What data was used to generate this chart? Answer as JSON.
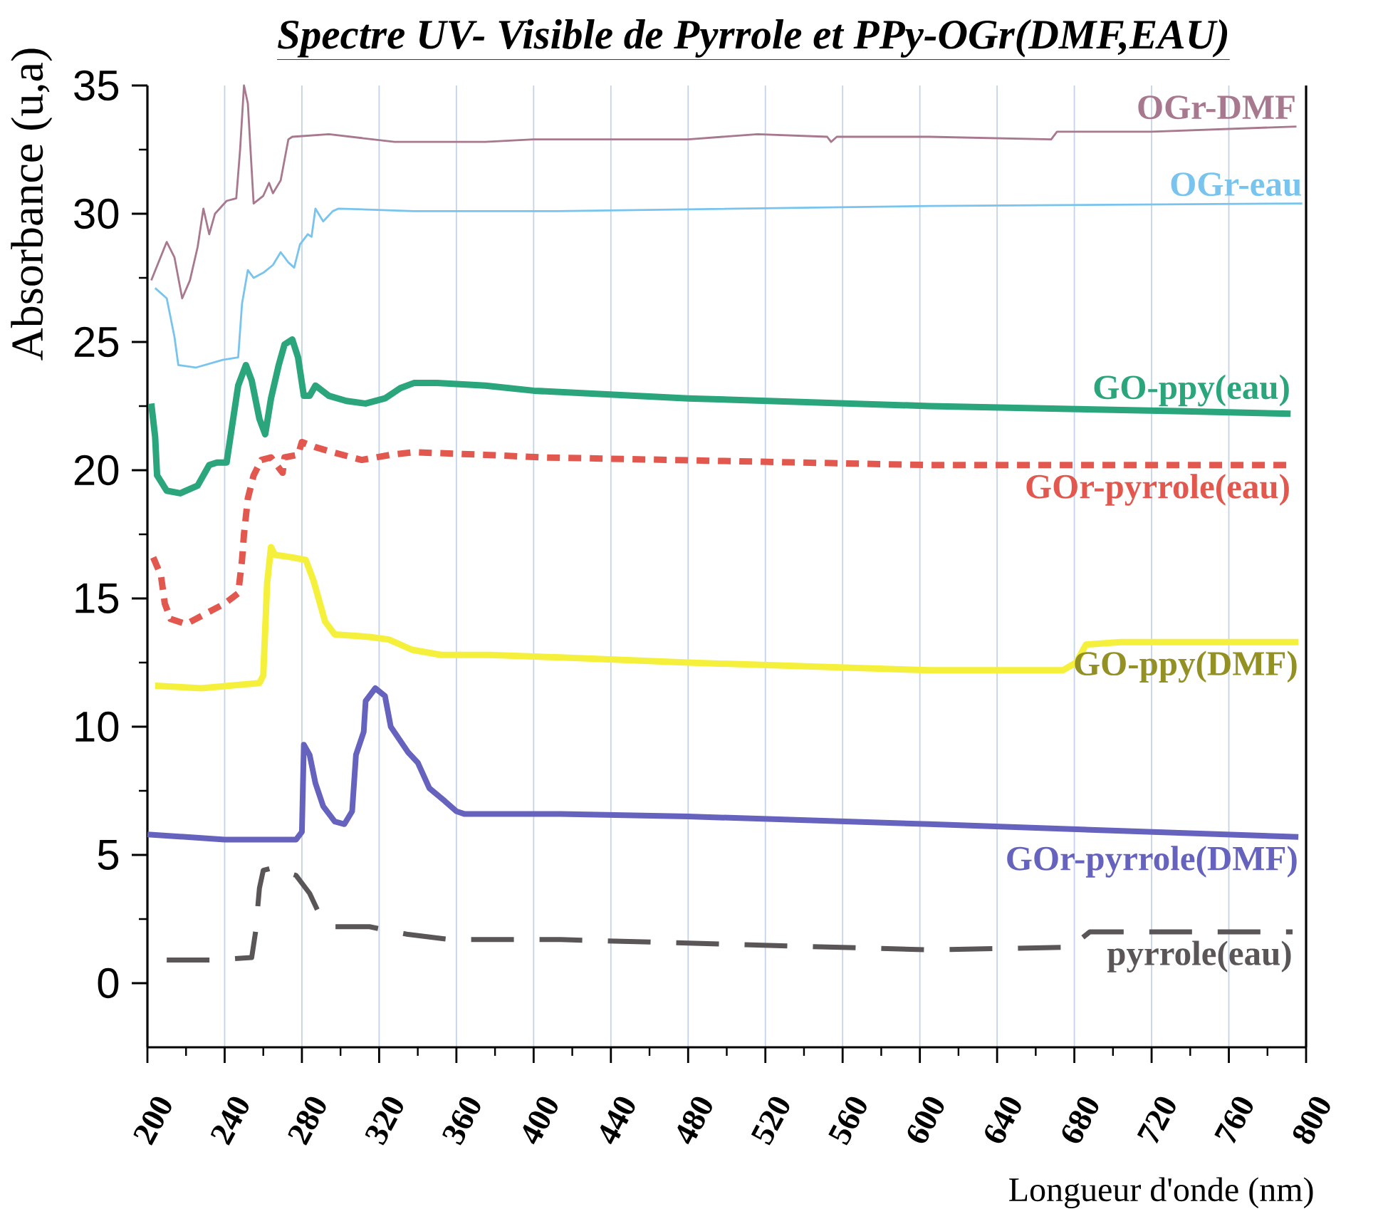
{
  "chart_data": {
    "type": "line",
    "title": "Spectre UV- Visible de Pyrrole et PPy-OGr(DMF,EAU)",
    "xlabel": "Longueur d'onde (nm)",
    "ylabel": "Absorbance (u,a)",
    "xlim": [
      200,
      800
    ],
    "ylim": [
      -2.5,
      35
    ],
    "xticks": [
      200,
      240,
      280,
      320,
      360,
      400,
      440,
      480,
      520,
      560,
      600,
      640,
      680,
      720,
      760,
      800
    ],
    "yticks": [
      0,
      5,
      10,
      15,
      20,
      25,
      30,
      35
    ],
    "grid": "x",
    "series": [
      {
        "name": "OGr-DMF",
        "color": "#a8788e",
        "line_style": "solid",
        "x": [
          202,
          210,
          214,
          218,
          222,
          226,
          229,
          232,
          235,
          241,
          246,
          248,
          250,
          252,
          255,
          260,
          263,
          265,
          269,
          273,
          275,
          294,
          328,
          375,
          400,
          440,
          480,
          516,
          552,
          554,
          557,
          605,
          668,
          671,
          720,
          795
        ],
        "values": [
          27.4,
          28.9,
          28.3,
          26.7,
          27.4,
          28.7,
          30.2,
          29.2,
          30.0,
          30.5,
          30.6,
          32.5,
          35.0,
          34.3,
          30.4,
          30.7,
          31.2,
          30.8,
          31.3,
          32.9,
          33.0,
          33.1,
          32.8,
          32.8,
          32.9,
          32.9,
          32.9,
          33.1,
          33.0,
          32.8,
          33.0,
          33.0,
          32.9,
          33.2,
          33.2,
          33.4
        ]
      },
      {
        "name": "OGr-eau",
        "color": "#78c4ee",
        "line_style": "solid",
        "x": [
          204,
          210,
          214,
          216,
          225,
          239,
          247,
          249,
          252,
          255,
          260,
          265,
          269,
          273,
          276,
          279,
          283,
          285,
          287,
          291,
          296,
          299,
          338,
          412,
          605,
          798
        ],
        "values": [
          27.1,
          26.7,
          25.2,
          24.1,
          24.0,
          24.3,
          24.4,
          26.5,
          27.8,
          27.5,
          27.7,
          28.0,
          28.5,
          28.1,
          27.9,
          28.8,
          29.2,
          29.1,
          30.2,
          29.7,
          30.1,
          30.2,
          30.1,
          30.1,
          30.3,
          30.4
        ]
      },
      {
        "name": "GO-ppy(eau)",
        "color": "#2ba57c",
        "line_style": "solid",
        "x": [
          202,
          204,
          205,
          210,
          217,
          226,
          232,
          236,
          241,
          243,
          247,
          251,
          254,
          258,
          261,
          264,
          268,
          271,
          275,
          278,
          281,
          284,
          287,
          294,
          303,
          313,
          323,
          331,
          338,
          350,
          375,
          400,
          480,
          605,
          737,
          792
        ],
        "values": [
          22.6,
          21.3,
          19.8,
          19.2,
          19.1,
          19.4,
          20.2,
          20.3,
          20.3,
          21.3,
          23.3,
          24.1,
          23.5,
          22.0,
          21.4,
          22.8,
          24.1,
          24.9,
          25.1,
          24.4,
          22.9,
          22.9,
          23.3,
          22.9,
          22.7,
          22.6,
          22.8,
          23.2,
          23.4,
          23.4,
          23.3,
          23.1,
          22.8,
          22.5,
          22.3,
          22.2
        ]
      },
      {
        "name": "GOr-pyrrole(eau)",
        "color": "#e2584e",
        "line_style": "dashed",
        "x": [
          203,
          207,
          209,
          212,
          220,
          230,
          240,
          247,
          249,
          250,
          252,
          255,
          259,
          264,
          270,
          271,
          278,
          280,
          287,
          296,
          311,
          326,
          338,
          375,
          404,
          605,
          792
        ],
        "values": [
          16.6,
          15.9,
          14.8,
          14.2,
          14.0,
          14.4,
          14.8,
          15.2,
          16.5,
          17.5,
          18.9,
          19.8,
          20.4,
          20.5,
          19.9,
          20.5,
          20.6,
          21.1,
          20.9,
          20.7,
          20.4,
          20.6,
          20.7,
          20.6,
          20.5,
          20.2,
          20.2
        ]
      },
      {
        "name": "GO-ppy(DMF)",
        "color": "#f5f03c",
        "line_style": "solid",
        "x": [
          204,
          228,
          258,
          260,
          262,
          264,
          266,
          275,
          282,
          286,
          292,
          297,
          315,
          325,
          337,
          352,
          377,
          414,
          480,
          605,
          674,
          681,
          686,
          704,
          796
        ],
        "values": [
          11.6,
          11.5,
          11.7,
          12.0,
          15.6,
          17.0,
          16.7,
          16.6,
          16.5,
          15.7,
          14.1,
          13.6,
          13.5,
          13.4,
          13.0,
          12.8,
          12.8,
          12.7,
          12.5,
          12.2,
          12.2,
          12.5,
          13.2,
          13.3,
          13.3
        ]
      },
      {
        "name": "GOr-pyrrole(DMF)",
        "color": "#6563bd",
        "line_style": "solid",
        "x": [
          200,
          240,
          277,
          280,
          281,
          284,
          287,
          291,
          297,
          302,
          306,
          308,
          312,
          313,
          318,
          323,
          326,
          335,
          340,
          346,
          354,
          360,
          364,
          414,
          480,
          605,
          796
        ],
        "values": [
          5.8,
          5.6,
          5.6,
          5.9,
          9.3,
          8.9,
          7.8,
          6.9,
          6.3,
          6.2,
          6.7,
          8.9,
          9.8,
          11.0,
          11.5,
          11.2,
          10.0,
          9.0,
          8.6,
          7.6,
          7.1,
          6.7,
          6.6,
          6.6,
          6.5,
          6.2,
          5.7
        ]
      },
      {
        "name": "pyrrole(eau)",
        "color": "#5a5556",
        "line_style": "dashed",
        "x": [
          210,
          234,
          254,
          256,
          258,
          260,
          265,
          277,
          284,
          289,
          297,
          315,
          335,
          357,
          414,
          605,
          678,
          688,
          793
        ],
        "values": [
          0.9,
          0.9,
          1.0,
          2.0,
          3.7,
          4.4,
          4.5,
          4.2,
          3.5,
          2.7,
          2.2,
          2.2,
          1.9,
          1.7,
          1.7,
          1.3,
          1.4,
          2.0,
          2.0
        ]
      }
    ]
  }
}
